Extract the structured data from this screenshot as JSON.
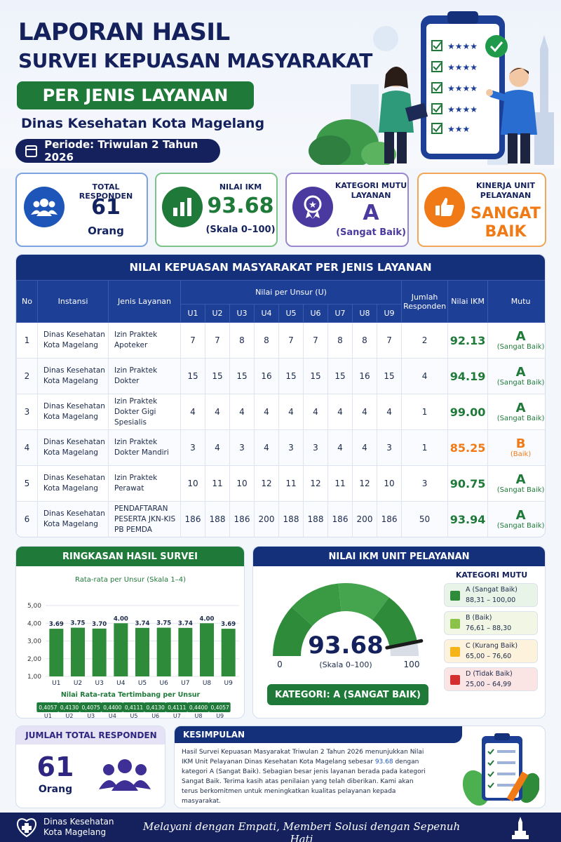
{
  "header": {
    "title_line1": "LAPORAN HASIL",
    "title_line2": "SURVEI KEPUASAN MASYARAKAT",
    "subtitle": "PER JENIS LAYANAN",
    "agency": "Dinas Kesehatan Kota Magelang",
    "period": "Periode: Triwulan 2 Tahun 2026"
  },
  "kpis": {
    "respondents": {
      "label": "TOTAL RESPONDEN",
      "value": "61",
      "unit": "Orang"
    },
    "ikm": {
      "label": "NILAI IKM",
      "value": "93.68",
      "scale": "(Skala 0–100)"
    },
    "category": {
      "label": "KATEGORI MUTU LAYANAN",
      "value": "A",
      "desc": "(Sangat Baik)"
    },
    "performance": {
      "label": "KINERJA UNIT PELAYANAN",
      "value": "SANGAT BAIK"
    }
  },
  "table": {
    "title": "NILAI KEPUASAN MASYARAKAT PER JENIS LAYANAN",
    "headers": {
      "no": "No",
      "instansi": "Instansi",
      "layanan": "Jenis Layanan",
      "unsur": "Nilai per Unsur (U)",
      "jumlah": "Jumlah Responden",
      "ikm": "Nilai IKM",
      "mutu": "Mutu"
    },
    "unsur_labels": [
      "U1",
      "U2",
      "U3",
      "U4",
      "U5",
      "U6",
      "U7",
      "U8",
      "U9"
    ],
    "rows": [
      {
        "no": "1",
        "instansi": "Dinas Kesehatan Kota Magelang",
        "layanan": "Izin Praktek Apoteker",
        "u": [
          "7",
          "7",
          "8",
          "8",
          "7",
          "7",
          "8",
          "8",
          "7"
        ],
        "jumlah": "2",
        "ikm": "92.13",
        "mutu": "A",
        "mutu_desc": "(Sangat Baik)"
      },
      {
        "no": "2",
        "instansi": "Dinas Kesehatan Kota Magelang",
        "layanan": "Izin Praktek Dokter",
        "u": [
          "15",
          "15",
          "15",
          "16",
          "15",
          "15",
          "15",
          "16",
          "15"
        ],
        "jumlah": "4",
        "ikm": "94.19",
        "mutu": "A",
        "mutu_desc": "(Sangat Baik)"
      },
      {
        "no": "3",
        "instansi": "Dinas Kesehatan Kota Magelang",
        "layanan": "Izin Praktek Dokter Gigi Spesialis",
        "u": [
          "4",
          "4",
          "4",
          "4",
          "4",
          "4",
          "4",
          "4",
          "4"
        ],
        "jumlah": "1",
        "ikm": "99.00",
        "mutu": "A",
        "mutu_desc": "(Sangat Baik)"
      },
      {
        "no": "4",
        "instansi": "Dinas Kesehatan Kota Magelang",
        "layanan": "Izin Praktek Dokter Mandiri",
        "u": [
          "3",
          "4",
          "3",
          "4",
          "3",
          "3",
          "4",
          "4",
          "3"
        ],
        "jumlah": "1",
        "ikm": "85.25",
        "mutu": "B",
        "mutu_desc": "(Baik)"
      },
      {
        "no": "5",
        "instansi": "Dinas Kesehatan Kota Magelang",
        "layanan": "Izin Praktek Perawat",
        "u": [
          "10",
          "11",
          "10",
          "12",
          "11",
          "12",
          "11",
          "12",
          "10"
        ],
        "jumlah": "3",
        "ikm": "90.75",
        "mutu": "A",
        "mutu_desc": "(Sangat Baik)"
      },
      {
        "no": "6",
        "instansi": "Dinas Kesehatan Kota Magelang",
        "layanan": "PENDAFTARAN PESERTA JKN-KIS PB PEMDA",
        "u": [
          "186",
          "188",
          "186",
          "200",
          "188",
          "188",
          "186",
          "200",
          "186"
        ],
        "jumlah": "50",
        "ikm": "93.94",
        "mutu": "A",
        "mutu_desc": "(Sangat Baik)"
      }
    ]
  },
  "summary": {
    "title": "RINGKASAN HASIL SURVEI",
    "chart_title": "Rata-rata per Unsur (Skala 1–4)",
    "weighted_title": "Nilai Rata-rata Tertimbang per Unsur",
    "weighted": [
      "0,4057",
      "0,4130",
      "0,4075",
      "0,4400",
      "0,4111",
      "0,4130",
      "0,4111",
      "0,4400",
      "0,4057"
    ],
    "y_ticks": [
      "5,00",
      "4,00",
      "3,00",
      "2,00",
      "1,00"
    ]
  },
  "chart_data": {
    "type": "bar",
    "title": "Rata-rata per Unsur (Skala 1–4)",
    "categories": [
      "U1",
      "U2",
      "U3",
      "U4",
      "U5",
      "U6",
      "U7",
      "U8",
      "U9"
    ],
    "values": [
      3.69,
      3.75,
      3.7,
      4.0,
      3.74,
      3.75,
      3.74,
      4.0,
      3.69
    ],
    "value_labels": [
      "3.69",
      "3.75",
      "3.70",
      "4.00",
      "3.74",
      "3.75",
      "3.74",
      "4.00",
      "3.69"
    ],
    "ylim": [
      1,
      5
    ],
    "grid": true,
    "color": "#2e8b3a"
  },
  "gauge": {
    "title": "NILAI IKM UNIT PELAYANAN",
    "value": 93.68,
    "value_text": "93.68",
    "scale": "(Skala 0–100)",
    "min": "0",
    "max": "100",
    "category_text": "KATEGORI: A (SANGAT BAIK)",
    "legend_title": "KATEGORI MUTU",
    "legend": [
      {
        "name": "A (Sangat Baik)",
        "range": "88,31 – 100,00",
        "color": "#2e8b3a",
        "bg": "#e8f4e8"
      },
      {
        "name": "B (Baik)",
        "range": "76,61 – 88,30",
        "color": "#8bc34a",
        "bg": "#f1f7e4"
      },
      {
        "name": "C (Kurang Baik)",
        "range": "65,00 – 76,60",
        "color": "#f5b417",
        "bg": "#fdf3dc"
      },
      {
        "name": "D (Tidak Baik)",
        "range": "25,00 – 64,99",
        "color": "#d32f2f",
        "bg": "#fbe4e4"
      }
    ]
  },
  "total": {
    "title": "JUMLAH TOTAL RESPONDEN",
    "value": "61",
    "unit": "Orang"
  },
  "conclusion": {
    "title": "KESIMPULAN",
    "text_before": "Hasil Survei Kepuasan Masyarakat Triwulan 2 Tahun 2026 menunjukkan Nilai IKM Unit Pelayanan Dinas Kesehatan Kota Magelang sebesar ",
    "highlight": "93.68",
    "text_after": " dengan kategori A (Sangat Baik). Sebagian besar jenis layanan berada pada kategori Sangat Baik. Terima kasih atas penilaian yang telah diberikan. Kami akan terus berkomitmen untuk meningkatkan kualitas pelayanan kepada masyarakat."
  },
  "footer": {
    "org_line1": "Dinas Kesehatan",
    "org_line2": "Kota Magelang",
    "motto": "Melayani dengan Empati, Memberi Solusi dengan Sepenuh Hati"
  }
}
